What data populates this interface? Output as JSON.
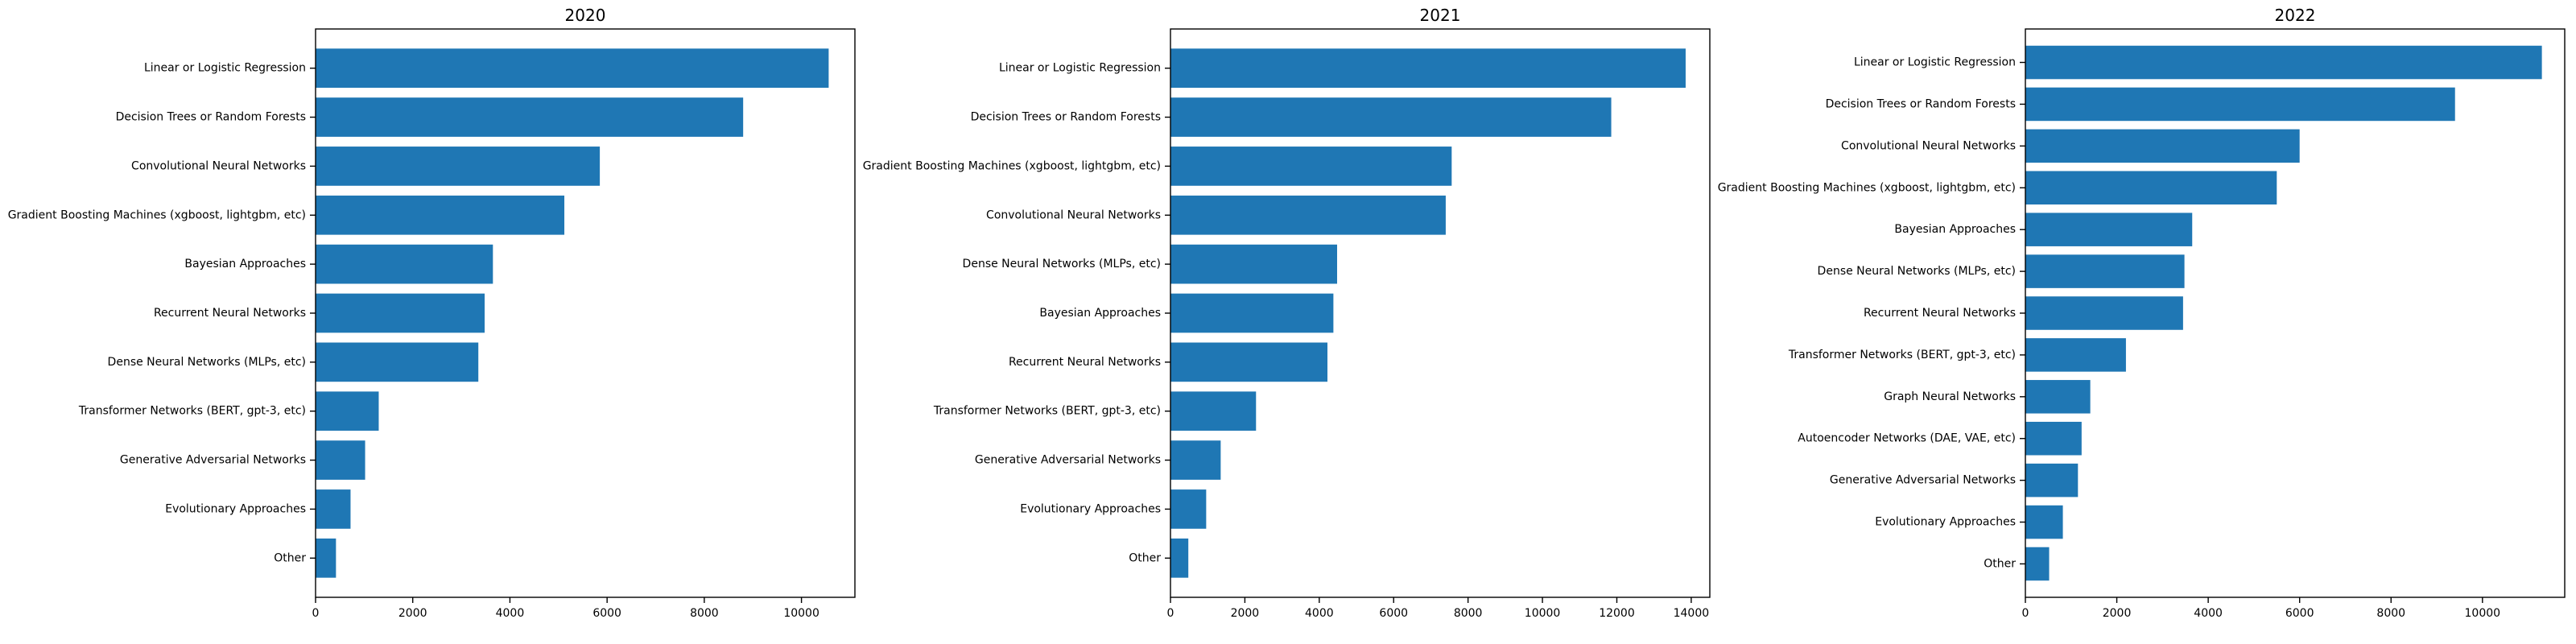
{
  "chart_data": [
    {
      "type": "bar",
      "orientation": "horizontal",
      "title": "2020",
      "xlabel": "",
      "ylabel": "",
      "xlim": [
        0,
        11100
      ],
      "xticks": [
        0,
        2000,
        4000,
        6000,
        8000,
        10000
      ],
      "xtick_labels": [
        "0",
        "2000",
        "4000",
        "6000",
        "8000",
        "10000"
      ],
      "bar_color": "#1f77b4",
      "grid": false,
      "categories": [
        "Linear or Logistic Regression",
        "Decision Trees or Random Forests",
        "Convolutional Neural Networks",
        "Gradient Boosting Machines (xgboost, lightgbm, etc)",
        "Bayesian Approaches",
        "Recurrent Neural Networks",
        "Dense Neural Networks (MLPs, etc)",
        "Transformer Networks (BERT, gpt-3, etc)",
        "Generative Adversarial Networks",
        "Evolutionary Approaches",
        "Other"
      ],
      "values": [
        10560,
        8800,
        5850,
        5120,
        3650,
        3480,
        3350,
        1300,
        1020,
        720,
        420
      ]
    },
    {
      "type": "bar",
      "orientation": "horizontal",
      "title": "2021",
      "xlabel": "",
      "ylabel": "",
      "xlim": [
        0,
        14500
      ],
      "xticks": [
        0,
        2000,
        4000,
        6000,
        8000,
        10000,
        12000,
        14000
      ],
      "xtick_labels": [
        "0",
        "2000",
        "4000",
        "6000",
        "8000",
        "10000",
        "12000",
        "14000"
      ],
      "bar_color": "#1f77b4",
      "grid": false,
      "categories": [
        "Linear or Logistic Regression",
        "Decision Trees or Random Forests",
        "Gradient Boosting Machines (xgboost, lightgbm, etc)",
        "Convolutional Neural Networks",
        "Dense Neural Networks (MLPs, etc)",
        "Bayesian Approaches",
        "Recurrent Neural Networks",
        "Transformer Networks (BERT, gpt-3, etc)",
        "Generative Adversarial Networks",
        "Evolutionary Approaches",
        "Other"
      ],
      "values": [
        13850,
        11850,
        7560,
        7400,
        4480,
        4380,
        4220,
        2300,
        1350,
        960,
        480
      ]
    },
    {
      "type": "bar",
      "orientation": "horizontal",
      "title": "2022",
      "xlabel": "",
      "ylabel": "",
      "xlim": [
        0,
        11800
      ],
      "xticks": [
        0,
        2000,
        4000,
        6000,
        8000,
        10000
      ],
      "xtick_labels": [
        "0",
        "2000",
        "4000",
        "6000",
        "8000",
        "10000"
      ],
      "bar_color": "#1f77b4",
      "grid": false,
      "categories": [
        "Linear or Logistic Regression",
        "Decision Trees or Random Forests",
        "Convolutional Neural Networks",
        "Gradient Boosting Machines (xgboost, lightgbm, etc)",
        "Bayesian Approaches",
        "Dense Neural Networks (MLPs, etc)",
        "Recurrent Neural Networks",
        "Transformer Networks (BERT, gpt-3, etc)",
        "Graph Neural Networks",
        "Autoencoder Networks (DAE, VAE, etc)",
        "Generative Adversarial Networks",
        "Evolutionary Approaches",
        "Other"
      ],
      "values": [
        11300,
        9400,
        6000,
        5500,
        3650,
        3480,
        3450,
        2200,
        1420,
        1230,
        1150,
        820,
        520
      ]
    }
  ]
}
